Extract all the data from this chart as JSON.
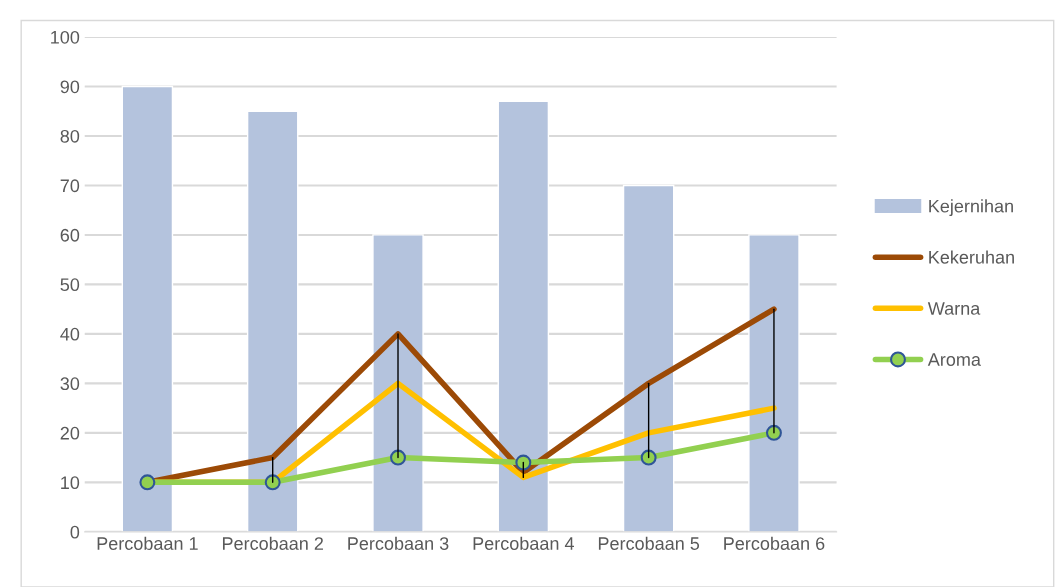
{
  "chart_data": {
    "type": "bar",
    "categories": [
      "Percobaan 1",
      "Percobaan 2",
      "Percobaan 3",
      "Percobaan 4",
      "Percobaan 5",
      "Percobaan 6"
    ],
    "series": [
      {
        "name": "Kejernihan",
        "color": "#b4c3dd",
        "values": [
          90,
          85,
          60,
          87,
          70,
          60
        ]
      },
      {
        "name": "Kekeruhan",
        "type": "line",
        "color": "#9c4a06",
        "values": [
          10,
          15,
          40,
          12,
          30,
          45
        ],
        "errors": [
          null,
          [
            10,
            15
          ],
          [
            15,
            40
          ],
          [
            11,
            14
          ],
          [
            15,
            30
          ],
          [
            20,
            45
          ]
        ]
      },
      {
        "name": "Warna",
        "type": "line",
        "color": "#ffc000",
        "values": [
          10,
          10,
          30,
          11,
          20,
          25
        ]
      },
      {
        "name": "Aroma",
        "type": "line",
        "color": "#92d050",
        "marker": "circle",
        "values": [
          10,
          10,
          15,
          14,
          15,
          20
        ]
      }
    ],
    "ylim": [
      0,
      100
    ],
    "yticks": [
      0,
      10,
      20,
      30,
      40,
      50,
      60,
      70,
      80,
      90,
      100
    ],
    "grid": "y",
    "legend": "right"
  }
}
